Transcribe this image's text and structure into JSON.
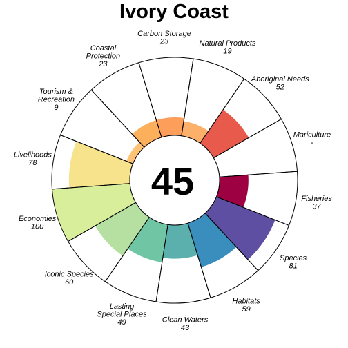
{
  "chart_data": {
    "type": "flower",
    "title": "Ivory Coast",
    "center_score": "45",
    "max": 100,
    "petals": [
      {
        "name": "Carbon Storage",
        "value": 23,
        "display": "23",
        "color": "#fd9e5a"
      },
      {
        "name": "Natural Products",
        "value": 19,
        "display": "19",
        "color": "#fdb06a"
      },
      {
        "name": "Aboriginal Needs",
        "value": 52,
        "display": "52",
        "color": "#e85a4b"
      },
      {
        "name": "Mariculture",
        "value": 0,
        "display": "-",
        "color": "#cccccc"
      },
      {
        "name": "Fisheries",
        "value": 37,
        "display": "37",
        "color": "#9e0142"
      },
      {
        "name": "Species",
        "value": 81,
        "display": "81",
        "color": "#5e4fa2"
      },
      {
        "name": "Habitats",
        "value": 59,
        "display": "59",
        "color": "#3a8ebd"
      },
      {
        "name": "Clean Waters",
        "value": 43,
        "display": "43",
        "color": "#5bafad"
      },
      {
        "name": "Lasting Special Places",
        "value": 49,
        "display": "49",
        "color": "#70c6a4"
      },
      {
        "name": "Iconic Species",
        "value": 60,
        "display": "60",
        "color": "#b6e0a2"
      },
      {
        "name": "Economies",
        "value": 100,
        "display": "100",
        "color": "#d8ee9b"
      },
      {
        "name": "Livelihoods",
        "value": 78,
        "display": "78",
        "color": "#f6e38c"
      },
      {
        "name": "Tourism & Recreation",
        "value": 9,
        "display": "9",
        "color": "#fdc274"
      },
      {
        "name": "Coastal Protection",
        "value": 23,
        "display": "23",
        "color": "#fdb05c"
      }
    ]
  }
}
